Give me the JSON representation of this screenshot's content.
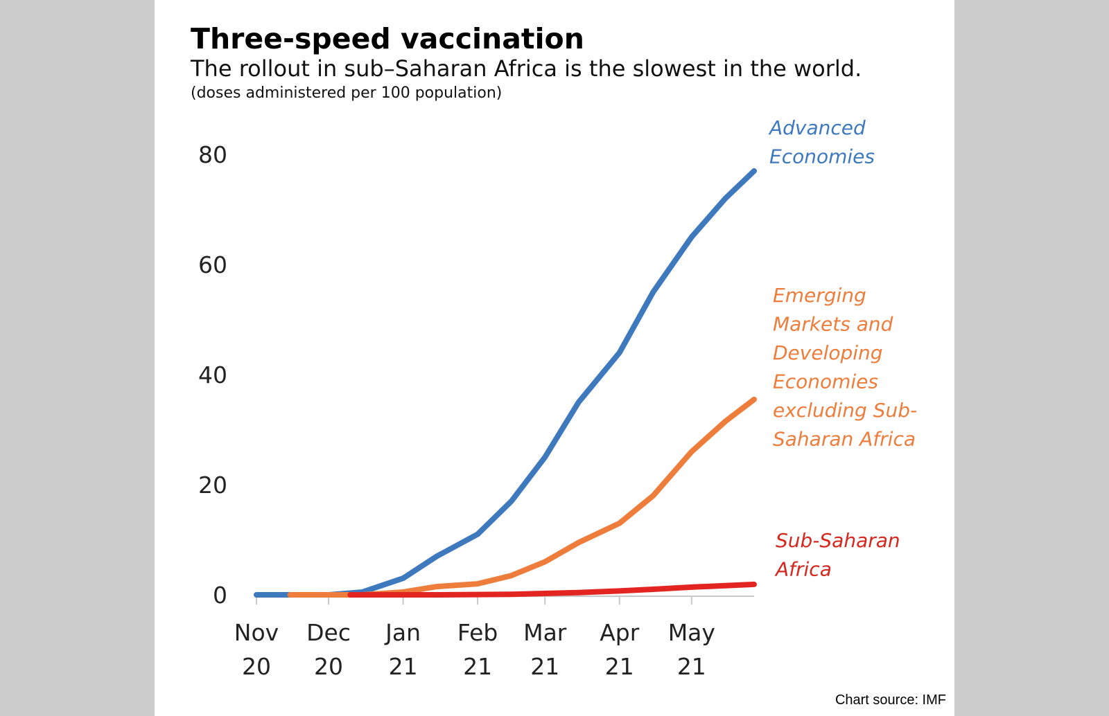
{
  "title": "Three-speed vaccination",
  "subtitle": "The rollout in sub–Saharan Africa is the slowest in the world.",
  "unit": "(doses administered per 100 population)",
  "source": "Chart source: IMF",
  "chart_data": {
    "type": "line",
    "ylim": [
      0,
      80
    ],
    "yticks": [
      "0",
      "20",
      "40",
      "60",
      "80"
    ],
    "xlim": [
      "2020-11-01",
      "2021-05-27"
    ],
    "xticks": [
      {
        "date": "2020-11-01",
        "line1": "Nov",
        "line2": "20"
      },
      {
        "date": "2020-12-01",
        "line1": "Dec",
        "line2": "20"
      },
      {
        "date": "2021-01-01",
        "line1": "Jan",
        "line2": "21"
      },
      {
        "date": "2021-02-01",
        "line1": "Feb",
        "line2": "21"
      },
      {
        "date": "2021-03-01",
        "line1": "Mar",
        "line2": "21"
      },
      {
        "date": "2021-04-01",
        "line1": "Apr",
        "line2": "21"
      },
      {
        "date": "2021-05-01",
        "line1": "May",
        "line2": "21"
      }
    ],
    "grid": false,
    "legend": "end-of-line labels",
    "series": [
      {
        "name": "Advanced Economies",
        "label_lines": [
          "Advanced",
          "Economies"
        ],
        "color": "#3e78bd",
        "label_color": "#3e78bd",
        "points": [
          [
            "2020-11-01",
            0
          ],
          [
            "2020-12-01",
            0
          ],
          [
            "2020-12-15",
            0.5
          ],
          [
            "2021-01-01",
            3
          ],
          [
            "2021-01-15",
            7
          ],
          [
            "2021-02-01",
            11
          ],
          [
            "2021-02-15",
            17
          ],
          [
            "2021-03-01",
            25
          ],
          [
            "2021-03-15",
            35
          ],
          [
            "2021-04-01",
            44
          ],
          [
            "2021-04-15",
            55
          ],
          [
            "2021-05-01",
            65
          ],
          [
            "2021-05-15",
            72
          ],
          [
            "2021-05-27",
            77
          ]
        ]
      },
      {
        "name": "Emerging Markets and Developing Economies excluding Sub-Saharan Africa",
        "label_lines": [
          "Emerging",
          "Markets and",
          "Developing",
          "Economies",
          "excluding Sub-",
          "Saharan Africa"
        ],
        "color": "#ee7d3b",
        "label_color": "#ee7d3b",
        "points": [
          [
            "2020-11-15",
            0
          ],
          [
            "2020-12-15",
            0
          ],
          [
            "2021-01-01",
            0.5
          ],
          [
            "2021-01-15",
            1.5
          ],
          [
            "2021-02-01",
            2
          ],
          [
            "2021-02-15",
            3.5
          ],
          [
            "2021-03-01",
            6
          ],
          [
            "2021-03-15",
            9.5
          ],
          [
            "2021-04-01",
            13
          ],
          [
            "2021-04-15",
            18
          ],
          [
            "2021-05-01",
            26
          ],
          [
            "2021-05-15",
            31.5
          ],
          [
            "2021-05-27",
            35.5
          ]
        ]
      },
      {
        "name": "Sub-Saharan Africa",
        "label_lines": [
          "Sub-Saharan",
          "Africa"
        ],
        "color": "#e32521",
        "label_color": "#d7261e",
        "points": [
          [
            "2020-12-10",
            0
          ],
          [
            "2021-01-15",
            0
          ],
          [
            "2021-02-15",
            0.1
          ],
          [
            "2021-03-15",
            0.4
          ],
          [
            "2021-04-01",
            0.7
          ],
          [
            "2021-04-15",
            1.0
          ],
          [
            "2021-05-01",
            1.4
          ],
          [
            "2021-05-27",
            1.9
          ]
        ]
      }
    ]
  }
}
